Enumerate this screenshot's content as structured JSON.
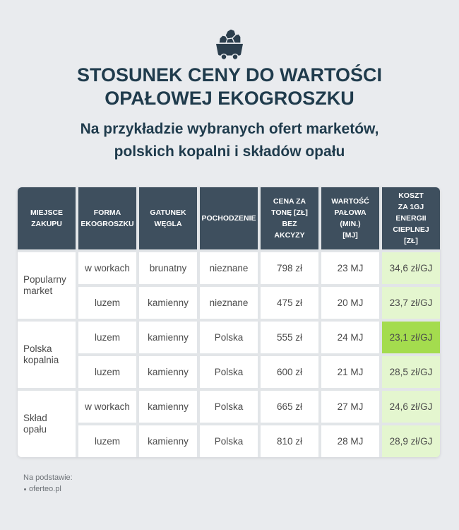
{
  "header": {
    "icon": "mine-cart-icon"
  },
  "colors": {
    "background": "#e9ebee",
    "title_text": "#1f3b4c",
    "icon": "#2b3e4d",
    "header_bg": "#3e4f5e",
    "header_text": "#ffffff",
    "grid_line": "#e2e5e8",
    "cell_bg": "#ffffff",
    "cell_text": "#4b4b4b",
    "cost_bg": "#e4f6cf",
    "cost_highlight_bg": "#a4dc4e",
    "source_text": "#6e7378"
  },
  "chart_data": {
    "type": "table",
    "title": "STOSUNEK CENY DO WARTOŚCI\nOPAŁOWEJ EKOGROSZKU",
    "subtitle": "Na przykładzie wybranych ofert marketów,\npolskich kopalni i składów opału",
    "columns": [
      "MIEJSCE\nZAKUPU",
      "FORMA\nEKOGROSZKU",
      "GATUNEK\nWĘGLA",
      "POCHODZENIE",
      "CENA ZA\nTONĘ [ZŁ]\nBEZ\nAKCYZY",
      "WARTOŚĆ\nPAŁOWA\n(MIN.)\n[MJ]",
      "KOSZT\nZA 1GJ\nENERGII\nCIEPLNEJ\n[ZŁ]"
    ],
    "groups": [
      {
        "place": "Popularny market",
        "rows": [
          {
            "form": "w workach",
            "coal_type": "brunatny",
            "origin": "nieznane",
            "price": "798 zł",
            "calorific_value": "23 MJ",
            "cost_per_gj": "34,6 zł/GJ",
            "highlighted": false
          },
          {
            "form": "luzem",
            "coal_type": "kamienny",
            "origin": "nieznane",
            "price": "475 zł",
            "calorific_value": "20 MJ",
            "cost_per_gj": "23,7 zł/GJ",
            "highlighted": false
          }
        ]
      },
      {
        "place": "Polska kopalnia",
        "rows": [
          {
            "form": "luzem",
            "coal_type": "kamienny",
            "origin": "Polska",
            "price": "555 zł",
            "calorific_value": "24 MJ",
            "cost_per_gj": "23,1 zł/GJ",
            "highlighted": true
          },
          {
            "form": "luzem",
            "coal_type": "kamienny",
            "origin": "Polska",
            "price": "600 zł",
            "calorific_value": "21 MJ",
            "cost_per_gj": "28,5 zł/GJ",
            "highlighted": false
          }
        ]
      },
      {
        "place": "Skład opału",
        "rows": [
          {
            "form": "w workach",
            "coal_type": "kamienny",
            "origin": "Polska",
            "price": "665 zł",
            "calorific_value": "27 MJ",
            "cost_per_gj": "24,6 zł/GJ",
            "highlighted": false
          },
          {
            "form": "luzem",
            "coal_type": "kamienny",
            "origin": "Polska",
            "price": "810 zł",
            "calorific_value": "28 MJ",
            "cost_per_gj": "28,9 zł/GJ",
            "highlighted": false
          }
        ]
      }
    ]
  },
  "source": {
    "label": "Na podstawie:",
    "items": [
      "oferteo.pl"
    ]
  }
}
